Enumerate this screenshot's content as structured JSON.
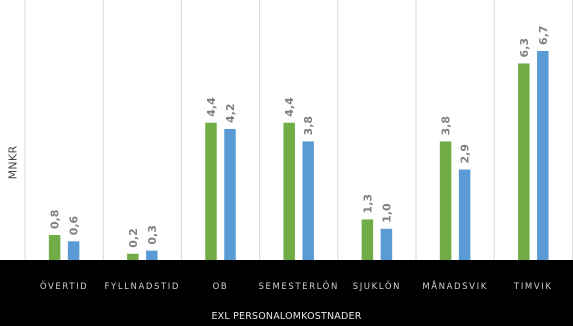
{
  "chart_data": {
    "type": "bar",
    "categories": [
      "ÖVERTID",
      "FYLLNADSTID",
      "OB",
      "SEMESTERLÖN",
      "SJUKLÖN",
      "MÅNADSVIK",
      "TIMVIK"
    ],
    "series": [
      {
        "values": [
          0.8,
          0.2,
          4.4,
          4.4,
          1.3,
          3.8,
          6.3
        ],
        "color": "#70ad47"
      },
      {
        "values": [
          0.6,
          0.3,
          4.2,
          3.8,
          1.0,
          2.9,
          6.7
        ],
        "color": "#5b9bd5"
      }
    ],
    "data_labels": {
      "series0": [
        "0,8",
        "0,2",
        "4,4",
        "4,4",
        "1,3",
        "3,8",
        "6,3"
      ],
      "series1": [
        "0,6",
        "0,3",
        "4,2",
        "3,8",
        "1,0",
        "2,9",
        "6,7"
      ]
    },
    "ylabel": "MNKR",
    "xlabel": "EXL PERSONALOMKOSTNADER",
    "ylim": [
      0,
      7.5
    ],
    "grid": "vertical category separators",
    "background": "#ffffff",
    "axis_band_color": "#000000",
    "label_color": "#808080",
    "separator_color": "#d9d9d9"
  }
}
